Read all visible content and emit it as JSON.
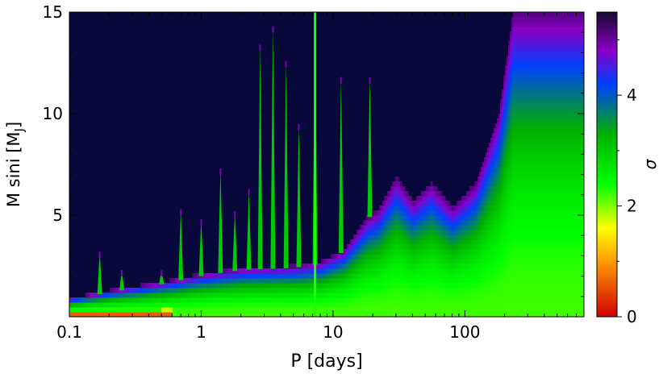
{
  "chart_data": {
    "type": "heatmap",
    "xlabel": "P [days]",
    "ylabel": "M sini [M",
    "ylabel_sub": "J",
    "ylabel_close": "]",
    "x_scale": "log",
    "xlim": [
      0.1,
      800
    ],
    "ylim": [
      0,
      15
    ],
    "x_ticks": [
      {
        "value": 0.1,
        "label": "0.1"
      },
      {
        "value": 1,
        "label": "1"
      },
      {
        "value": 10,
        "label": "10"
      },
      {
        "value": 100,
        "label": "100"
      }
    ],
    "y_ticks": [
      {
        "value": 5,
        "label": "5"
      },
      {
        "value": 10,
        "label": "10"
      },
      {
        "value": 15,
        "label": "15"
      }
    ],
    "colorbar": {
      "label": "σ",
      "range": [
        0,
        5.5
      ],
      "ticks": [
        {
          "value": 0,
          "label": "0"
        },
        {
          "value": 2,
          "label": "2"
        },
        {
          "value": 4,
          "label": "4"
        }
      ],
      "stops": [
        {
          "value": 0.0,
          "color": "#d10000"
        },
        {
          "value": 1.0,
          "color": "#ff9a00"
        },
        {
          "value": 1.6,
          "color": "#ffff00"
        },
        {
          "value": 2.4,
          "color": "#00ff00"
        },
        {
          "value": 3.3,
          "color": "#00b000"
        },
        {
          "value": 4.2,
          "color": "#0040ff"
        },
        {
          "value": 4.8,
          "color": "#8a00c8"
        },
        {
          "value": 5.5,
          "color": "#160a30"
        }
      ]
    },
    "background_color": "#08083a",
    "detection_limit": [
      {
        "P": 0.1,
        "M": 0.8
      },
      {
        "P": 0.2,
        "M": 1.2
      },
      {
        "P": 0.5,
        "M": 1.6
      },
      {
        "P": 1,
        "M": 2.0
      },
      {
        "P": 2,
        "M": 2.3
      },
      {
        "P": 5,
        "M": 2.4
      },
      {
        "P": 8,
        "M": 2.6
      },
      {
        "P": 12,
        "M": 3.2
      },
      {
        "P": 18,
        "M": 4.8
      },
      {
        "P": 22,
        "M": 5.2
      },
      {
        "P": 30,
        "M": 6.8
      },
      {
        "P": 40,
        "M": 5.6
      },
      {
        "P": 55,
        "M": 6.5
      },
      {
        "P": 80,
        "M": 5.3
      },
      {
        "P": 120,
        "M": 6.5
      },
      {
        "P": 180,
        "M": 10
      },
      {
        "P": 230,
        "M": 15
      },
      {
        "P": 800,
        "M": 15
      }
    ],
    "spikes": [
      {
        "P": 0.17,
        "M": 3.2
      },
      {
        "P": 0.25,
        "M": 2.3
      },
      {
        "P": 0.5,
        "M": 2.3
      },
      {
        "P": 0.7,
        "M": 5.3
      },
      {
        "P": 1.0,
        "M": 4.8
      },
      {
        "P": 1.4,
        "M": 7.3
      },
      {
        "P": 1.8,
        "M": 5.2
      },
      {
        "P": 2.3,
        "M": 6.3
      },
      {
        "P": 2.8,
        "M": 13.4
      },
      {
        "P": 3.5,
        "M": 14.3
      },
      {
        "P": 4.4,
        "M": 12.6
      },
      {
        "P": 5.5,
        "M": 9.5
      },
      {
        "P": 7.3,
        "M": 15
      },
      {
        "P": 11.5,
        "M": 11.8
      },
      {
        "P": 19,
        "M": 11.8
      }
    ],
    "strong_line": {
      "P": 7.3,
      "sigma": 2.3
    }
  }
}
